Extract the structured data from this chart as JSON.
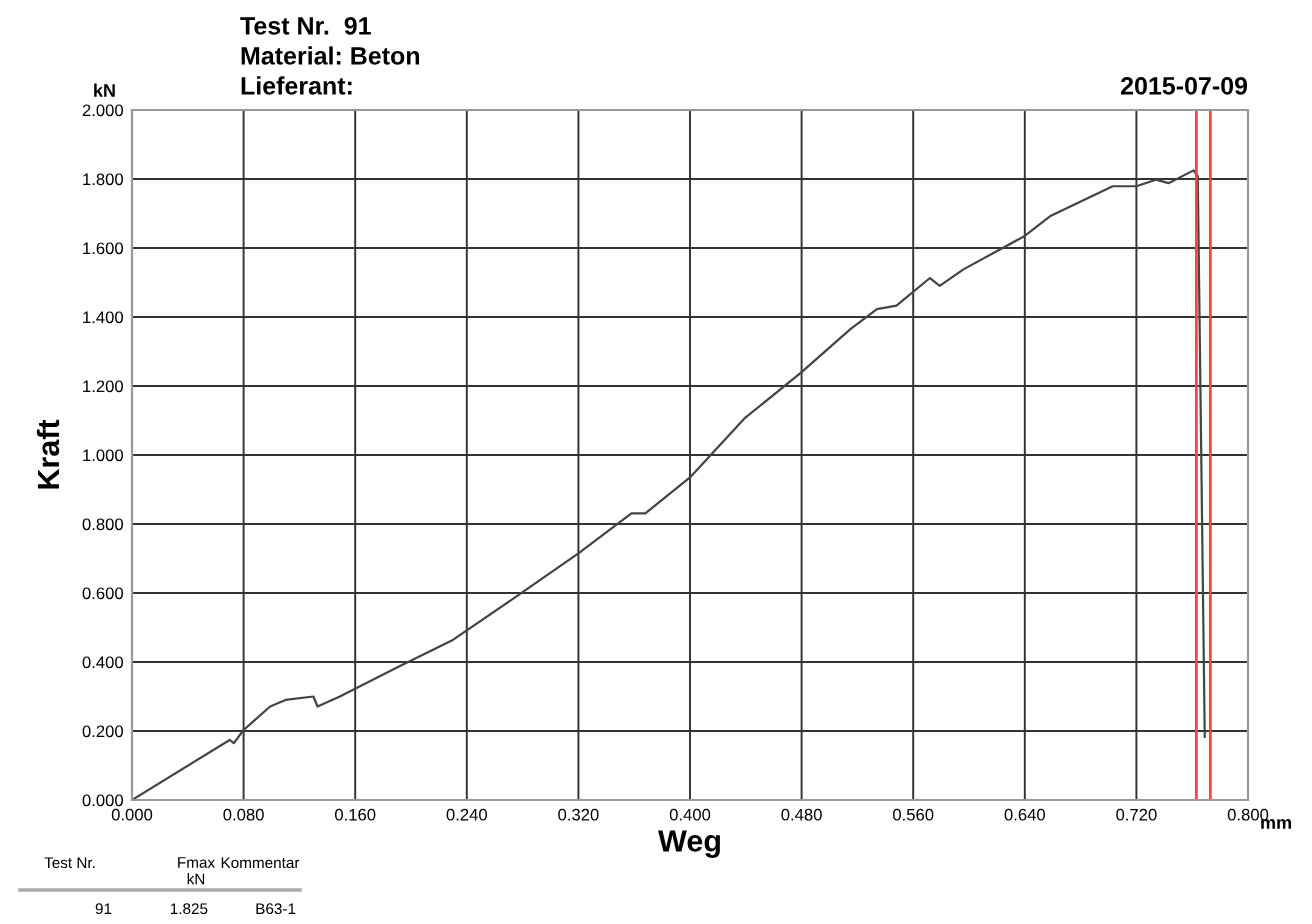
{
  "chart_data": {
    "type": "line",
    "title": "Test Nr.  91",
    "subtitle": "Material: Beton",
    "xlabel": "Weg",
    "ylabel": "Kraft",
    "annotations": [
      "Lieferant:",
      "2015-07-09",
      "kN",
      "mm",
      "Test Nr.",
      "Fmax\nkN",
      "Kommentar",
      "91",
      "1.825",
      "B63-1"
    ],
    "series": [
      {
        "color": "#444444",
        "x": [
          0,
          0.07,
          0.073,
          0.08,
          0.099,
          0.11,
          0.13,
          0.133,
          0.149,
          0.191,
          0.23,
          0.272,
          0.32,
          0.358,
          0.368,
          0.4,
          0.439,
          0.48,
          0.515,
          0.534,
          0.548,
          0.572,
          0.579,
          0.596,
          0.64,
          0.658,
          0.703,
          0.72,
          0.734,
          0.743,
          0.761,
          0.764,
          0.769
        ],
        "values": [
          0,
          0.174,
          0.165,
          0.203,
          0.271,
          0.29,
          0.3,
          0.271,
          0.3,
          0.386,
          0.464,
          0.58,
          0.715,
          0.831,
          0.831,
          0.935,
          1.106,
          1.24,
          1.365,
          1.423,
          1.433,
          1.513,
          1.49,
          1.538,
          1.635,
          1.692,
          1.779,
          1.779,
          1.798,
          1.788,
          1.825,
          1.808,
          0.183
        ]
      }
    ],
    "xlim": [
      0,
      0.8
    ],
    "ylim": [
      0,
      2.0
    ],
    "xticks": [
      {
        "value": 0,
        "label": "0.000"
      },
      {
        "value": 0.08,
        "label": "0.080"
      },
      {
        "value": 0.16,
        "label": "0.160"
      },
      {
        "value": 0.24,
        "label": "0.240"
      },
      {
        "value": 0.32,
        "label": "0.320"
      },
      {
        "value": 0.4,
        "label": "0.400"
      },
      {
        "value": 0.48,
        "label": "0.480"
      },
      {
        "value": 0.56,
        "label": "0.560"
      },
      {
        "value": 0.64,
        "label": "0.640"
      },
      {
        "value": 0.72,
        "label": "0.720"
      },
      {
        "value": 0.8,
        "label": "0.800"
      }
    ],
    "yticks": [
      {
        "value": 0,
        "label": "0.000"
      },
      {
        "value": 0.2,
        "label": "0.200"
      },
      {
        "value": 0.4,
        "label": "0.400"
      },
      {
        "value": 0.6,
        "label": "0.600"
      },
      {
        "value": 0.8,
        "label": "0.800"
      },
      {
        "value": 1.0,
        "label": "1.000"
      },
      {
        "value": 1.2,
        "label": "1.200"
      },
      {
        "value": 1.4,
        "label": "1.400"
      },
      {
        "value": 1.6,
        "label": "1.600"
      },
      {
        "value": 1.8,
        "label": "1.800"
      },
      {
        "value": 2.0,
        "label": "2.000"
      }
    ],
    "ref_lines": [
      {
        "axis": "x",
        "value": 0.763,
        "color": "#ff4040"
      },
      {
        "axis": "x",
        "value": 0.773,
        "color": "#ff4040"
      }
    ],
    "grid": true
  }
}
